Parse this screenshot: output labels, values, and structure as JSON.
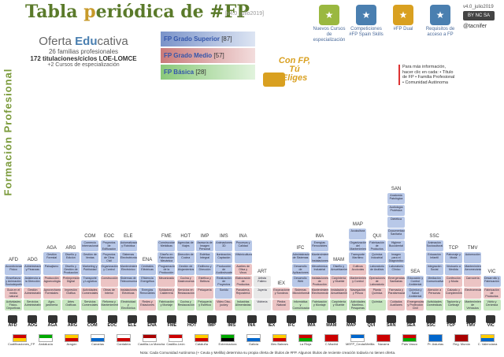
{
  "side_title": "Formación Profesional",
  "title": {
    "prefix": "Tabla ",
    "hi1": "p",
    "mid": "eriódica de ",
    "hashtag": "#FP"
  },
  "version": "[v4.0_julio2019]",
  "top_boxes": [
    {
      "label": "Nuevos Cursos de especialización",
      "icon": "new-icon",
      "color": "#9ab840"
    },
    {
      "label": "Competiciones #FP Spain Skills",
      "icon": "trophy-icon",
      "color": "#4a7fb0"
    },
    {
      "label": "#FP Dual",
      "icon": "dual-icon",
      "color": "#d9a020"
    },
    {
      "label": "Requisitos de acceso a FP",
      "icon": "key-icon",
      "color": "#4a7fb0"
    }
  ],
  "license": {
    "version": "v4.0_julio2019",
    "cc": "BY NC SA",
    "twitter": "@tacnifer"
  },
  "oferta": {
    "h_plain1": "Oferta ",
    "h_bold": "Edu",
    "h_plain2": "cativa",
    "l1": "26 familias profesionales",
    "l2": "172 titulaciones/ciclos LOE-LOMCE",
    "l3": "+2 Cursos de especialización"
  },
  "levels": [
    {
      "cls": "sup",
      "name": "FP Grado Superior",
      "count": "[87]"
    },
    {
      "cls": "med",
      "name": "FP Grado Medio",
      "count": "[57]"
    },
    {
      "cls": "bas",
      "name": "FP Básica",
      "count": "[28]"
    }
  ],
  "confp": {
    "l1": "Con FP,",
    "l2": "Tú",
    "l3": "Eliges"
  },
  "info_box": "Para más información, hacer clic en cada: • Título de FP • Familia Profesional • Comunidad Autónoma",
  "families": [
    {
      "code": "AFD",
      "n": [
        "Acondicionamiento Físico",
        "Enseñanza y Animación Sociodeportiva",
        "Guía en el medio natural",
        "Actividades Físico-Deportivas"
      ],
      "lv": [
        "sup",
        "sup",
        "med",
        "bas"
      ]
    },
    {
      "code": "ADG",
      "n": [
        "Administración y Finanzas",
        "Asistencia a la Dirección",
        "Gestión Administrativa",
        "Servicios Administrativos"
      ],
      "lv": [
        "sup",
        "sup",
        "med",
        "bas"
      ]
    },
    {
      "code": "AGA",
      "n": [
        "Gestión Forestal",
        "Paisajismo",
        "Producción Agroecológica",
        "Aprovechamientos Forestales",
        "Agro-jardinería"
      ],
      "lv": [
        "sup",
        "sup",
        "med",
        "med",
        "bas"
      ]
    },
    {
      "code": "ARG",
      "n": [
        "Diseño y Edición",
        "Diseño y Gestión de Producción",
        "Preimpresión Digital",
        "Impresión Gráfica",
        "Artes Gráficas"
      ],
      "lv": [
        "sup",
        "sup",
        "med",
        "med",
        "bas"
      ]
    },
    {
      "code": "COM",
      "n": [
        "Comercio Internacional",
        "Gestión de Ventas",
        "Marketing y Publicidad",
        "Transporte y Logística",
        "Actividades Comerciales",
        "Servicios Comerciales"
      ],
      "lv": [
        "sup",
        "sup",
        "sup",
        "sup",
        "med",
        "bas"
      ]
    },
    {
      "code": "EOC",
      "n": [
        "Proyectos de Edificación",
        "Proyectos de Obra Civil",
        "Organización y Control",
        "Construcción",
        "Obras de Interior",
        "Reforma y Mantenimiento"
      ],
      "lv": [
        "sup",
        "sup",
        "sup",
        "med",
        "med",
        "bas"
      ]
    },
    {
      "code": "ELE",
      "n": [
        "Automatización y Robótica",
        "Sistemas Electrotécnicos",
        "Mantenimiento Electrónico",
        "Sistemas de Telecomunicaciones",
        "Instalaciones Eléctricas",
        "Electricidad y Electrónica"
      ],
      "lv": [
        "sup",
        "sup",
        "sup",
        "sup",
        "med",
        "bas"
      ]
    },
    {
      "code": "ENA",
      "n": [
        "Centrales Eléctricas",
        "Eficiencia Energética",
        "Energías Renovables",
        "Redes y Estaciones"
      ],
      "lv": [
        "sup",
        "sup",
        "sup",
        "med"
      ]
    },
    {
      "code": "FME",
      "n": [
        "Construcciones Metálicas",
        "Diseño en Fabricación Mecánica",
        "Programación de la Producción",
        "Mecanizado",
        "Soldadura y Calderería",
        "Fabricación y Montaje"
      ],
      "lv": [
        "sup",
        "sup",
        "sup",
        "med",
        "med",
        "bas"
      ]
    },
    {
      "code": "HOT",
      "n": [
        "Agencias de Viajes",
        "Dirección de Cocina",
        "Gestión de Alojamientos",
        "Cocina y Gastronomía",
        "Servicios en Restauración",
        "Cocina y Restauración"
      ],
      "lv": [
        "sup",
        "sup",
        "sup",
        "med",
        "med",
        "bas"
      ]
    },
    {
      "code": "IMP",
      "n": [
        "Asesoría de Imagen Personal",
        "Estética Integral",
        "Estilismo y Dirección",
        "Estética y Belleza",
        "Peluquería",
        "Peluquería y Estética"
      ],
      "lv": [
        "sup",
        "sup",
        "sup",
        "med",
        "med",
        "bas"
      ]
    },
    {
      "code": "IMS",
      "n": [
        "Animaciones 3D",
        "Iluminación, Captación",
        "Producción de Audiovisuales",
        "Realización de Proyectos",
        "Sonido",
        "Video Disc-jockey"
      ],
      "lv": [
        "sup",
        "sup",
        "sup",
        "sup",
        "sup",
        "med"
      ]
    },
    {
      "code": "INA",
      "n": [
        "Procesos y Calidad",
        "Vitivinicultura",
        "Aceites de Oliva y Vinos",
        "Elaboración de Productos",
        "Panadería, Repostería",
        "Industrias Alimentarias"
      ],
      "lv": [
        "sup",
        "sup",
        "med",
        "med",
        "med",
        "bas"
      ]
    },
    {
      "code": "ART",
      "n": [
        "Artista Fallero",
        "Joyería",
        "Vidriería"
      ],
      "lv": [
        "esp",
        "esp",
        "esp"
      ]
    },
    {
      "code": "IEX",
      "n": [
        "Excavaciones y Sondeos",
        "Piedra Natural"
      ],
      "lv": [
        "med",
        "med"
      ]
    },
    {
      "code": "IFC",
      "n": [
        "Administración de Sistemas",
        "Desarrollo de Aplicaciones",
        "Desarrollo Web",
        "Sistemas Microinformáticos",
        "Informática y Comunicaciones"
      ],
      "lv": [
        "sup",
        "sup",
        "sup",
        "med",
        "bas"
      ]
    },
    {
      "code": "IMA",
      "n": [
        "Energías Renovables",
        "Mantenimiento de Instalaciones",
        "Mecatrónica Industrial",
        "Instalaciones de Producción",
        "Mantenimiento Electromecánico",
        "Fabricación y Montaje"
      ],
      "lv": [
        "sup",
        "sup",
        "sup",
        "med",
        "med",
        "bas"
      ]
    },
    {
      "code": "MAM",
      "n": [
        "Diseño y Amueblamiento",
        "Carpintería y Mueble",
        "Instalación y Amueblamiento",
        "Carpintería y Mueble"
      ],
      "lv": [
        "sup",
        "med",
        "med",
        "bas"
      ]
    },
    {
      "code": "MAP",
      "n": [
        "Acuicultura",
        "Organización del Mantenimiento",
        "Transporte Marítimo",
        "Cultivos Acuícolas",
        "Mantenimiento y Control",
        "Navegación y Pesca",
        "Actividades Marítimo-Pesqueras"
      ],
      "lv": [
        "sup",
        "sup",
        "sup",
        "med",
        "med",
        "med",
        "bas"
      ]
    },
    {
      "code": "QUI",
      "n": [
        "Fabricación de Productos",
        "Química Industrial",
        "Laboratorio de Análisis",
        "Operaciones de Laboratorio",
        "Planta Química",
        "Química"
      ],
      "lv": [
        "sup",
        "sup",
        "sup",
        "med",
        "med",
        "bas"
      ]
    },
    {
      "code": "SAN",
      "n": [
        "Anatomía Patológica",
        "Audiología Protésica",
        "Dietética",
        "Documentación Sanitaria",
        "Higiene Bucodental",
        "Imagen para el Diagnóstico",
        "Laboratorio Clínico",
        "Emergencias Sanitarias",
        "Farmacia y Parafarmacia",
        "Cuidados Auxiliares"
      ],
      "lv": [
        "sup",
        "sup",
        "sup",
        "sup",
        "sup",
        "sup",
        "sup",
        "med",
        "med",
        "med"
      ]
    },
    {
      "code": "SEA",
      "n": [
        "Educación y Control Ambiental",
        "Química y Salud Ambiental",
        "Emergencias y Protección Civil"
      ],
      "lv": [
        "sup",
        "sup",
        "med"
      ]
    },
    {
      "code": "SSC",
      "n": [
        "Animación Sociocultural",
        "Educación Infantil",
        "Integración Social",
        "Mediación Comunicativa",
        "Atención a Personas",
        "Actividades Domésticas"
      ],
      "lv": [
        "sup",
        "sup",
        "sup",
        "sup",
        "med",
        "bas"
      ]
    },
    {
      "code": "TCP",
      "n": [
        "Patronaje y Moda",
        "Vestuario a Medida",
        "Confección y Moda",
        "Calzado y Complementos",
        "Tapicería y Cortinaje"
      ],
      "lv": [
        "sup",
        "sup",
        "med",
        "med",
        "bas"
      ]
    },
    {
      "code": "TMV",
      "n": [
        "Automoción",
        "Mantenimiento Aeromecánico",
        "Carrocería",
        "Electromecánica",
        "Mantenimiento de Vehículos"
      ],
      "lv": [
        "sup",
        "sup",
        "med",
        "med",
        "bas"
      ]
    },
    {
      "code": "VIC",
      "n": [
        "Desarrollo y Fabricación",
        "Fabricación de Productos Cerámicos",
        "Vidrio y Cerámica"
      ],
      "lv": [
        "sup",
        "med",
        "bas"
      ]
    }
  ],
  "family_icons": [
    "AFD",
    "ADG",
    "AGA",
    "ARG",
    "COM",
    "EOC",
    "ELE",
    "ENA",
    "FME",
    "HOT",
    "IMP",
    "IMS",
    "INA",
    "IEX",
    "IFC",
    "IMA",
    "MAM",
    "MAP",
    "QUI",
    "SAN",
    "SEA",
    "SSC",
    "TCP",
    "TMV",
    "VIC"
  ],
  "flags": [
    {
      "name": "Cualificaciones_FP",
      "colors": [
        "#c00",
        "#fc0"
      ]
    },
    {
      "name": "Andalucía",
      "colors": [
        "#0a0",
        "#fff"
      ]
    },
    {
      "name": "Aragón",
      "colors": [
        "#fc0",
        "#c00"
      ]
    },
    {
      "name": "Canarias",
      "colors": [
        "#fff",
        "#06c"
      ]
    },
    {
      "name": "Cantabria",
      "colors": [
        "#fff",
        "#c00"
      ]
    },
    {
      "name": "Castilla-La Mancha",
      "colors": [
        "#a00",
        "#fff"
      ]
    },
    {
      "name": "Castilla-León",
      "colors": [
        "#c00",
        "#fff"
      ]
    },
    {
      "name": "Cataluña",
      "colors": [
        "#fc0",
        "#c00"
      ]
    },
    {
      "name": "Extremadura",
      "colors": [
        "#0a0",
        "#000"
      ]
    },
    {
      "name": "Galicia",
      "colors": [
        "#fff",
        "#06c"
      ]
    },
    {
      "name": "Illes Balears",
      "colors": [
        "#fc0",
        "#c00"
      ]
    },
    {
      "name": "La Rioja",
      "colors": [
        "#c00",
        "#0a0"
      ]
    },
    {
      "name": "C.Madrid",
      "colors": [
        "#c00",
        "#c00"
      ]
    },
    {
      "name": "MEFP_Ceuta/Melilla",
      "colors": [
        "#06c",
        "#fff"
      ]
    },
    {
      "name": "Navarra",
      "colors": [
        "#c00",
        "#c00"
      ]
    },
    {
      "name": "País Vasco",
      "colors": [
        "#c00",
        "#0a0"
      ]
    },
    {
      "name": "Pr. Asturias",
      "colors": [
        "#06c",
        "#06c"
      ]
    },
    {
      "name": "Reg. Murcia",
      "colors": [
        "#a00",
        "#a00"
      ]
    },
    {
      "name": "C. Valenciana",
      "colors": [
        "#fc0",
        "#06c"
      ]
    }
  ],
  "nota": "Nota: Cada Comunidad Autónoma (+ Ceuta y Melilla) determina su propia oferta de títulos de #FP. Algunos títulos de reciente creación todavía no tienen oferta."
}
